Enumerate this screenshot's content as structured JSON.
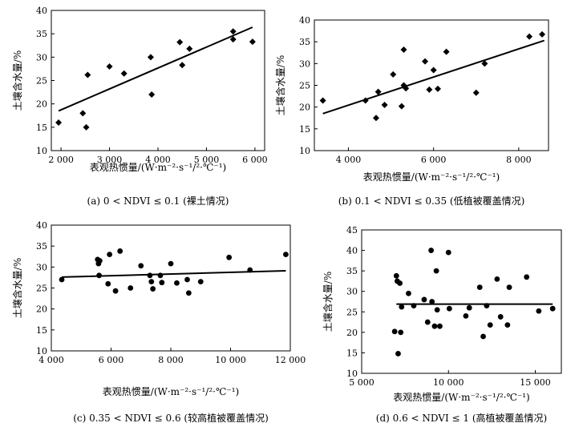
{
  "chart_data": [
    {
      "type": "scatter",
      "caption": "(a) 0 < NDVI ≤ 0.1 (裸土情况)",
      "xlabel": "表观热惯量/(W·m⁻²·s⁻¹/²·℃⁻¹)",
      "ylabel": "土壤含水量/%",
      "xlim": [
        1800,
        6200
      ],
      "ylim": [
        10,
        40
      ],
      "xticks": [
        2000,
        3000,
        4000,
        5000,
        6000
      ],
      "xtick_labels": [
        "2 000",
        "3 000",
        "4 000",
        "5 000",
        "6 000"
      ],
      "yticks": [
        10,
        15,
        20,
        25,
        30,
        35,
        40
      ],
      "marker": "diamond",
      "x": [
        1950,
        2450,
        2520,
        2550,
        3000,
        3300,
        3850,
        3870,
        4450,
        4500,
        4650,
        5550,
        5550,
        5950
      ],
      "y": [
        16,
        18,
        15,
        26.2,
        28,
        26.5,
        30,
        22,
        33.2,
        28.3,
        31.8,
        35.5,
        33.8,
        33.3
      ],
      "trend": {
        "x": [
          1950,
          5950
        ],
        "y": [
          18.5,
          36.4
        ]
      }
    },
    {
      "type": "scatter",
      "caption": "(b) 0.1 < NDVI ≤ 0.35 (低植被覆盖情况)",
      "xlabel": "表观热惯量/(W·m⁻²·s⁻¹/²·℃⁻¹)",
      "ylabel": "土壤含水量/%",
      "xlim": [
        3200,
        8700
      ],
      "ylim": [
        10,
        40
      ],
      "xticks": [
        4000,
        6000,
        8000
      ],
      "xtick_labels": [
        "4 000",
        "6 000",
        "8 000"
      ],
      "yticks": [
        10,
        15,
        20,
        25,
        30,
        35,
        40
      ],
      "marker": "diamond",
      "x": [
        3400,
        4400,
        4650,
        4700,
        4850,
        5050,
        5250,
        5300,
        5300,
        5350,
        5800,
        5900,
        6000,
        6100,
        6300,
        7000,
        7200,
        8250,
        8550
      ],
      "y": [
        21.5,
        21.5,
        17.5,
        23.5,
        20.5,
        27.5,
        20.2,
        25,
        33.2,
        24.3,
        30.5,
        24,
        28.5,
        24.2,
        32.7,
        23.3,
        30,
        36.2,
        36.7
      ],
      "trend": {
        "x": [
          3400,
          8600
        ],
        "y": [
          18.5,
          35.3
        ]
      }
    },
    {
      "type": "scatter",
      "caption": "(c) 0.35 < NDVI ≤ 0.6 (较高植被覆盖情况)",
      "xlabel": "表观热惯量/(W·m⁻²·s⁻¹/²·℃⁻¹)",
      "ylabel": "土壤含水量/%",
      "xlim": [
        4000,
        12000
      ],
      "ylim": [
        10,
        40
      ],
      "xticks": [
        4000,
        6000,
        8000,
        10000,
        12000
      ],
      "xtick_labels": [
        "4 000",
        "6 000",
        "8 000",
        "10 000",
        "12 000"
      ],
      "yticks": [
        10,
        15,
        20,
        25,
        30,
        35,
        40
      ],
      "marker": "circle",
      "x": [
        4350,
        5550,
        5580,
        5600,
        5620,
        5900,
        5950,
        6150,
        6300,
        6650,
        7000,
        7300,
        7350,
        7400,
        7650,
        7700,
        8000,
        8200,
        8550,
        8600,
        9000,
        9950,
        10650,
        11850
      ],
      "y": [
        27,
        31.8,
        30.8,
        28,
        31.5,
        26,
        33,
        24.3,
        33.8,
        25,
        30.3,
        28,
        26.5,
        24.8,
        28,
        26.3,
        30.8,
        26.2,
        27,
        23.8,
        26.5,
        32.3,
        29.3,
        33
      ],
      "trend": {
        "x": [
          4350,
          11850
        ],
        "y": [
          27.6,
          29.1
        ]
      }
    },
    {
      "type": "scatter",
      "caption": "(d) 0.6 < NDVI ≤ 1 (高植被覆盖情况)",
      "xlabel": "表观热惯量/(W·m⁻²·s⁻¹/²·℃⁻¹)",
      "ylabel": "土壤含水量/%",
      "xlim": [
        5000,
        16500
      ],
      "ylim": [
        10,
        45
      ],
      "xticks": [
        5000,
        10000,
        15000
      ],
      "xtick_labels": [
        "5 000",
        "10 000",
        "15 000"
      ],
      "yticks": [
        10,
        15,
        20,
        25,
        30,
        35,
        40,
        45
      ],
      "marker": "circle",
      "x": [
        6900,
        7000,
        7050,
        7100,
        7200,
        7250,
        7300,
        7700,
        8000,
        8600,
        8800,
        9000,
        9050,
        9200,
        9300,
        9350,
        9500,
        10000,
        10050,
        11000,
        11200,
        11800,
        12000,
        12200,
        12400,
        12800,
        13000,
        13400,
        13500,
        14500,
        15200,
        16000
      ],
      "y": [
        20.2,
        33.8,
        32.5,
        14.8,
        32,
        20,
        26.2,
        29.5,
        26.5,
        28,
        22.5,
        40,
        27.5,
        21.5,
        35,
        25.5,
        21.5,
        39.5,
        25.8,
        24,
        26,
        31,
        19,
        26.5,
        21.8,
        33,
        23.8,
        21.8,
        31,
        33.5,
        25.2,
        25.8
      ],
      "trend": {
        "x": [
          7000,
          16000
        ],
        "y": [
          26.9,
          26.9
        ]
      }
    }
  ]
}
